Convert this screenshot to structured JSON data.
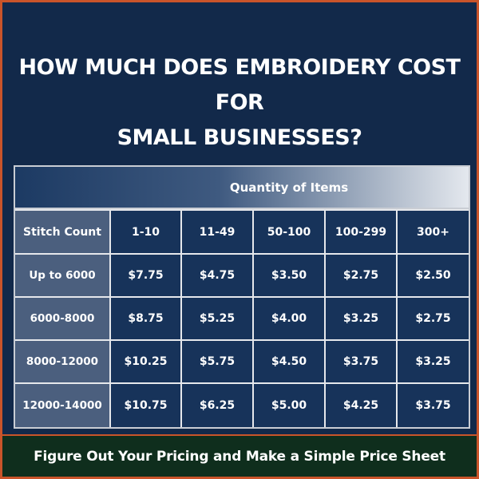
{
  "title": {
    "line1": "HOW MUCH DOES EMBROIDERY COST FOR",
    "line2": "SMALL BUSINESSES?"
  },
  "table": {
    "group_header": "Quantity of Items",
    "corner_label": "Stitch Count",
    "columns": [
      "1-10",
      "11-49",
      "50-100",
      "100-299",
      "300+"
    ],
    "rows": [
      {
        "label": "Up to 6000",
        "values": [
          "$7.75",
          "$4.75",
          "$3.50",
          "$2.75",
          "$2.50"
        ]
      },
      {
        "label": "6000-8000",
        "values": [
          "$8.75",
          "$5.25",
          "$4.00",
          "$3.25",
          "$2.75"
        ]
      },
      {
        "label": "8000-12000",
        "values": [
          "$10.25",
          "$5.75",
          "$4.50",
          "$3.75",
          "$3.25"
        ]
      },
      {
        "label": "12000-14000",
        "values": [
          "$10.75",
          "$6.25",
          "$5.00",
          "$4.25",
          "$3.75"
        ]
      }
    ]
  },
  "footer": {
    "caption": "Figure Out Your Pricing and Make a Simple Price Sheet"
  },
  "colors": {
    "background": "#12294a",
    "border_accent": "#c9542a",
    "cell": "#17335a",
    "row_header": "#4b5f7e",
    "footer": "#0f2e1d"
  }
}
